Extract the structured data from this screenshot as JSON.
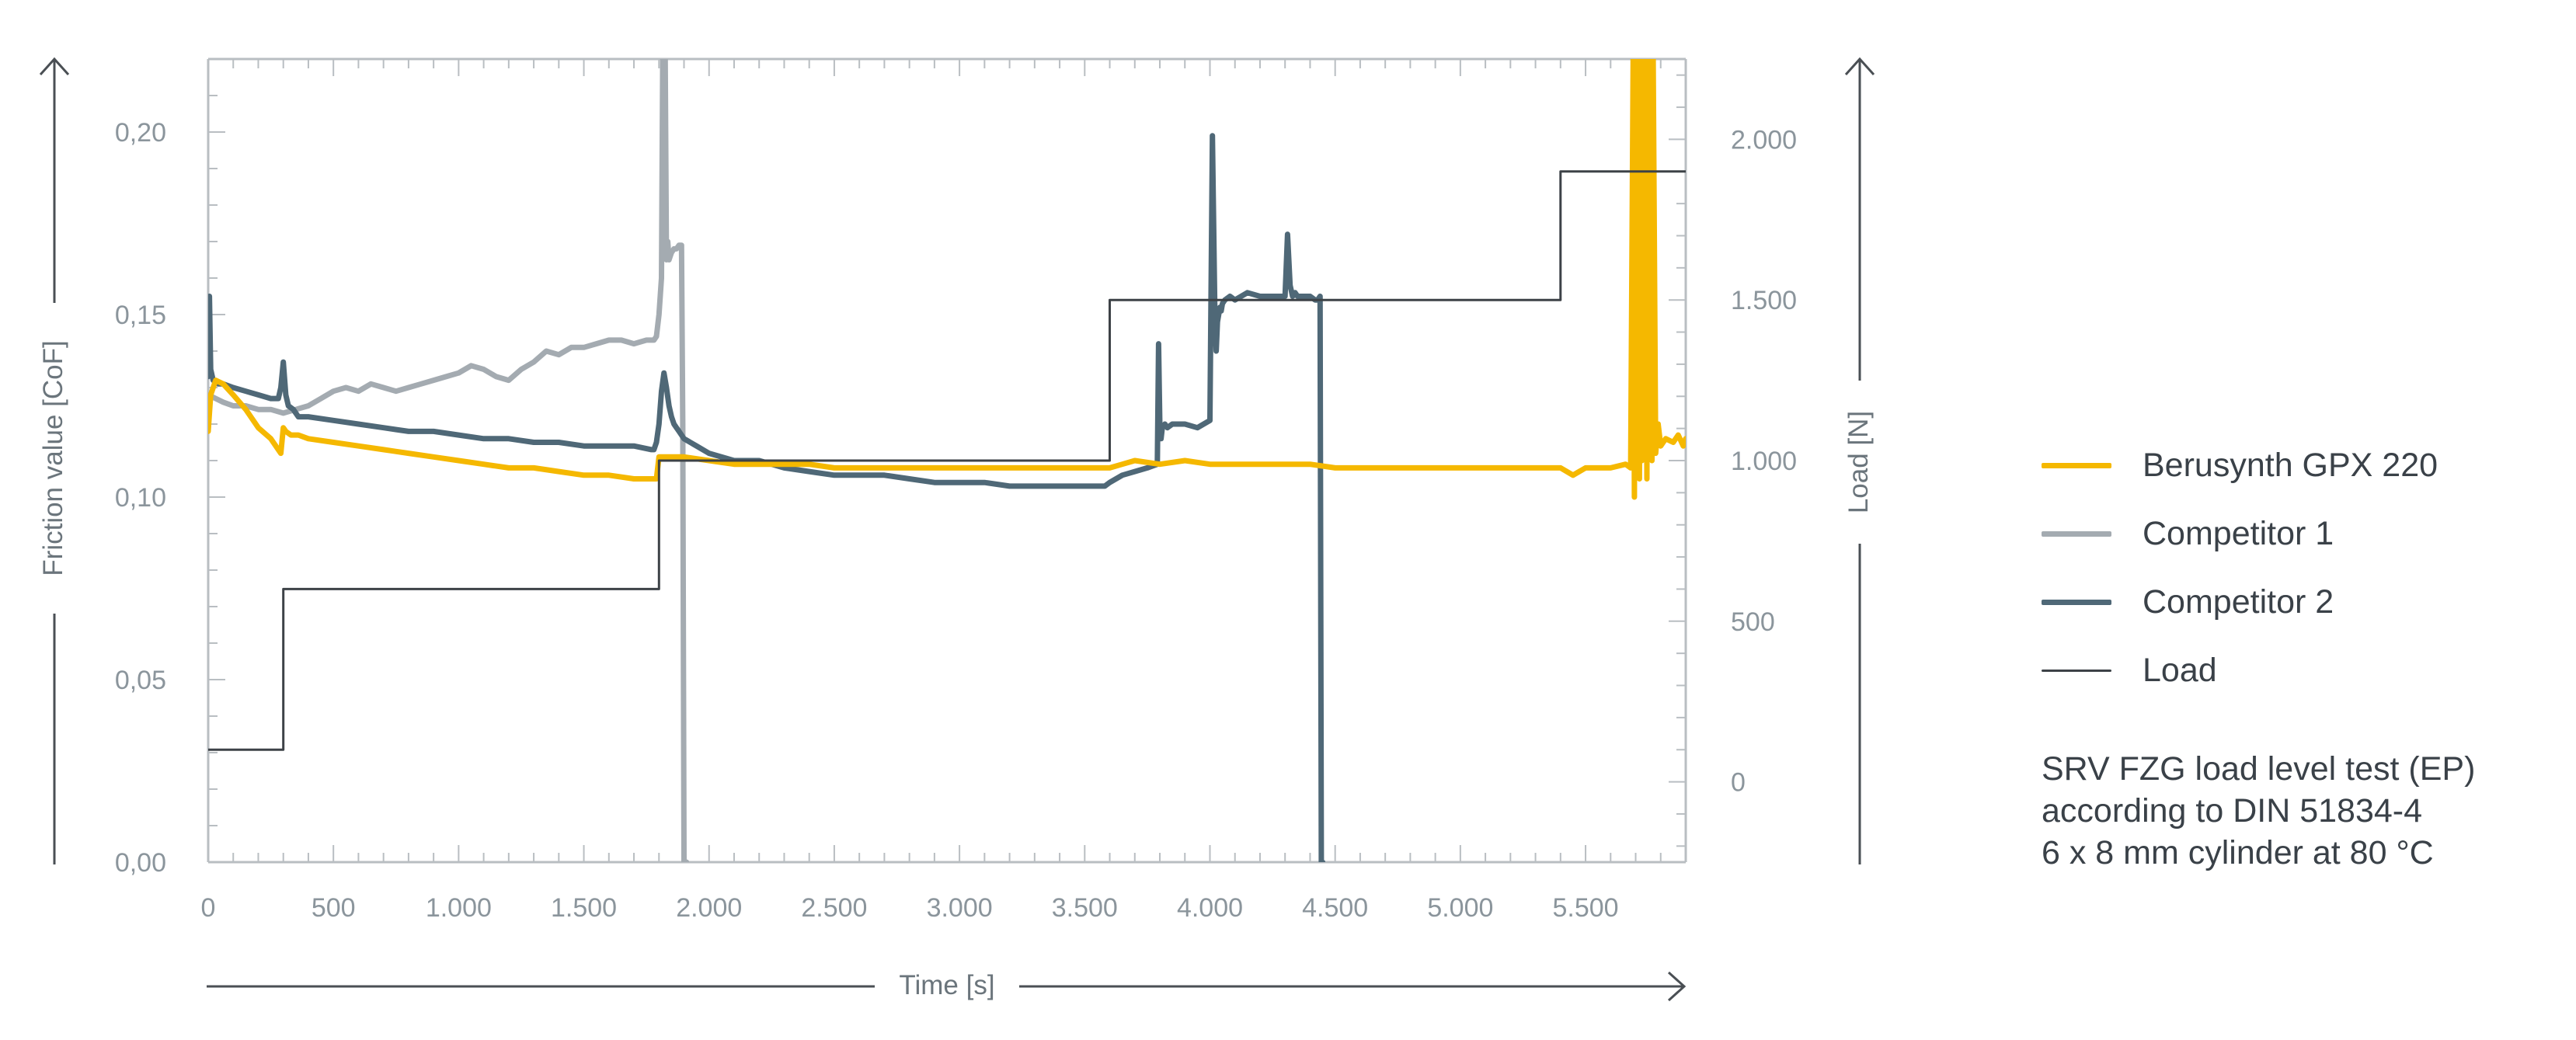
{
  "chart_data": {
    "type": "line",
    "xlabel": "Time [s]",
    "ylabel_left": "Friction value [CoF]",
    "ylabel_right": "Load [N]",
    "xlim": [
      0,
      5900
    ],
    "ylim_left": [
      0,
      0.22
    ],
    "ylim_right": [
      -250,
      2250
    ],
    "x_ticks": [
      0,
      500,
      1000,
      1500,
      2000,
      2500,
      3000,
      3500,
      4000,
      4500,
      5000,
      5500
    ],
    "x_tick_labels": [
      "0",
      "500",
      "1.000",
      "1.500",
      "2.000",
      "2.500",
      "3.000",
      "3.500",
      "4.000",
      "4.500",
      "5.000",
      "5.500"
    ],
    "y_left_ticks": [
      0,
      0.05,
      0.1,
      0.15,
      0.2
    ],
    "y_left_tick_labels": [
      "0,00",
      "0,05",
      "0,10",
      "0,15",
      "0,20"
    ],
    "y_right_ticks": [
      0,
      500,
      1000,
      1500,
      2000
    ],
    "y_right_tick_labels": [
      "0",
      "500",
      "1.000",
      "1.500",
      "2.000"
    ],
    "grid": false,
    "legend_position": "right",
    "series": [
      {
        "name": "Berusynth GPX 220",
        "axis": "left",
        "color": "#f5b800",
        "x": [
          0,
          10,
          30,
          60,
          100,
          150,
          200,
          250,
          290,
          300,
          310,
          330,
          360,
          400,
          500,
          600,
          700,
          800,
          900,
          1000,
          1100,
          1200,
          1300,
          1400,
          1500,
          1600,
          1700,
          1790,
          1800,
          1820,
          1840,
          1900,
          2000,
          2100,
          2200,
          2300,
          2400,
          2500,
          2700,
          2900,
          3100,
          3300,
          3400,
          3500,
          3600,
          3650,
          3700,
          3800,
          3900,
          4000,
          4100,
          4200,
          4300,
          4400,
          4500,
          4600,
          4700,
          4800,
          4900,
          5000,
          5100,
          5200,
          5300,
          5400,
          5450,
          5500,
          5600,
          5660,
          5680,
          5690,
          5695,
          5700,
          5705,
          5710,
          5715,
          5720,
          5725,
          5730,
          5735,
          5740,
          5745,
          5750,
          5755,
          5760,
          5765,
          5770,
          5780,
          5790,
          5800,
          5820,
          5850,
          5870,
          5890,
          5900
        ],
        "values": [
          0.118,
          0.128,
          0.132,
          0.131,
          0.128,
          0.124,
          0.119,
          0.116,
          0.112,
          0.119,
          0.118,
          0.117,
          0.117,
          0.116,
          0.115,
          0.114,
          0.113,
          0.112,
          0.111,
          0.11,
          0.109,
          0.108,
          0.108,
          0.107,
          0.106,
          0.106,
          0.105,
          0.105,
          0.111,
          0.111,
          0.111,
          0.111,
          0.11,
          0.109,
          0.109,
          0.109,
          0.109,
          0.108,
          0.108,
          0.108,
          0.108,
          0.108,
          0.108,
          0.108,
          0.108,
          0.109,
          0.11,
          0.109,
          0.11,
          0.109,
          0.109,
          0.109,
          0.109,
          0.109,
          0.108,
          0.108,
          0.108,
          0.108,
          0.108,
          0.108,
          0.108,
          0.108,
          0.108,
          0.108,
          0.106,
          0.108,
          0.108,
          0.109,
          0.108,
          0.22,
          0.1,
          0.22,
          0.11,
          0.22,
          0.105,
          0.22,
          0.11,
          0.22,
          0.12,
          0.22,
          0.105,
          0.22,
          0.115,
          0.22,
          0.11,
          0.22,
          0.112,
          0.12,
          0.114,
          0.116,
          0.115,
          0.117,
          0.114,
          0.116
        ]
      },
      {
        "name": "Competitor 1",
        "axis": "left",
        "color": "#a4abb1",
        "x": [
          0,
          30,
          60,
          100,
          150,
          200,
          250,
          300,
          350,
          400,
          450,
          500,
          550,
          600,
          650,
          700,
          750,
          800,
          850,
          900,
          950,
          1000,
          1050,
          1100,
          1150,
          1200,
          1250,
          1300,
          1350,
          1400,
          1450,
          1500,
          1550,
          1600,
          1650,
          1700,
          1750,
          1780,
          1790,
          1800,
          1810,
          1815,
          1820,
          1825,
          1830,
          1835,
          1840,
          1845,
          1850,
          1860,
          1870,
          1880,
          1890,
          1895,
          1900,
          1905,
          1910
        ],
        "values": [
          0.128,
          0.127,
          0.126,
          0.125,
          0.125,
          0.124,
          0.124,
          0.123,
          0.124,
          0.125,
          0.127,
          0.129,
          0.13,
          0.129,
          0.131,
          0.13,
          0.129,
          0.13,
          0.131,
          0.132,
          0.133,
          0.134,
          0.136,
          0.135,
          0.133,
          0.132,
          0.135,
          0.137,
          0.14,
          0.139,
          0.141,
          0.141,
          0.142,
          0.143,
          0.143,
          0.142,
          0.143,
          0.143,
          0.144,
          0.15,
          0.16,
          0.22,
          0.22,
          0.22,
          0.165,
          0.17,
          0.165,
          0.166,
          0.167,
          0.168,
          0.168,
          0.169,
          0.169,
          0.12,
          0.0,
          0.0,
          0.0
        ]
      },
      {
        "name": "Competitor 2",
        "axis": "left",
        "color": "#4f6877",
        "x": [
          0,
          5,
          10,
          20,
          40,
          60,
          100,
          150,
          200,
          250,
          280,
          290,
          300,
          310,
          320,
          340,
          360,
          400,
          500,
          600,
          700,
          800,
          900,
          1000,
          1100,
          1200,
          1300,
          1400,
          1500,
          1600,
          1700,
          1770,
          1780,
          1790,
          1800,
          1810,
          1820,
          1830,
          1840,
          1850,
          1860,
          1870,
          1880,
          1900,
          1950,
          2000,
          2100,
          2200,
          2300,
          2400,
          2500,
          2600,
          2700,
          2800,
          2900,
          3000,
          3100,
          3200,
          3300,
          3400,
          3500,
          3550,
          3580,
          3600,
          3650,
          3700,
          3750,
          3790,
          3795,
          3800,
          3805,
          3810,
          3820,
          3830,
          3850,
          3900,
          3950,
          4000,
          4010,
          4020,
          4025,
          4030,
          4035,
          4040,
          4045,
          4050,
          4060,
          4080,
          4100,
          4150,
          4200,
          4250,
          4300,
          4310,
          4320,
          4330,
          4340,
          4350,
          4400,
          4420,
          4430,
          4440,
          4445,
          4450
        ],
        "values": [
          0.133,
          0.155,
          0.135,
          0.132,
          0.131,
          0.131,
          0.13,
          0.129,
          0.128,
          0.127,
          0.127,
          0.13,
          0.137,
          0.128,
          0.125,
          0.124,
          0.122,
          0.122,
          0.121,
          0.12,
          0.119,
          0.118,
          0.118,
          0.117,
          0.116,
          0.116,
          0.115,
          0.115,
          0.114,
          0.114,
          0.114,
          0.113,
          0.113,
          0.115,
          0.12,
          0.129,
          0.134,
          0.13,
          0.125,
          0.122,
          0.12,
          0.119,
          0.118,
          0.116,
          0.114,
          0.112,
          0.11,
          0.11,
          0.108,
          0.107,
          0.106,
          0.106,
          0.106,
          0.105,
          0.104,
          0.104,
          0.104,
          0.103,
          0.103,
          0.103,
          0.103,
          0.103,
          0.103,
          0.104,
          0.106,
          0.107,
          0.108,
          0.109,
          0.142,
          0.12,
          0.116,
          0.119,
          0.12,
          0.119,
          0.12,
          0.12,
          0.119,
          0.121,
          0.199,
          0.15,
          0.14,
          0.148,
          0.15,
          0.152,
          0.151,
          0.153,
          0.154,
          0.155,
          0.154,
          0.156,
          0.155,
          0.155,
          0.155,
          0.172,
          0.158,
          0.155,
          0.156,
          0.155,
          0.155,
          0.154,
          0.154,
          0.155,
          0.0,
          0.0
        ]
      },
      {
        "name": "Load",
        "axis": "right",
        "color": "#3d4247",
        "x": [
          0,
          300,
          300,
          1800,
          1800,
          3600,
          3600,
          5400,
          5400,
          5900
        ],
        "values": [
          100,
          100,
          600,
          600,
          1000,
          1000,
          1500,
          1500,
          1900,
          1900
        ]
      }
    ]
  },
  "note": {
    "line1": "SRV FZG load level test (EP)",
    "line2": "according to DIN 51834-4",
    "line3": "6 x 8 mm cylinder at 80 °C"
  }
}
